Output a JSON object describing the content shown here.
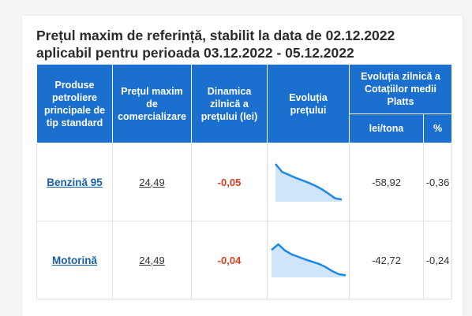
{
  "title": {
    "line1": "Prețul maxim de referință, stabilit la data de 02.12.2022",
    "line2": "aplicabil pentru perioada 03.12.2022 - 05.12.2022"
  },
  "table": {
    "headers": {
      "product": "Produse petroliere principale de tip standard",
      "max_price": "Prețul maxim de comercializare",
      "daily_change": "Dinamica zilnică a prețului (lei)",
      "evolution": "Evoluția prețului",
      "platts": "Evoluția zilnică a Cotațiilor medii Platts",
      "lei_tona": "lei/tona",
      "percent": "%"
    },
    "rows": [
      {
        "product": "Benzină 95",
        "max_price": "24,49",
        "daily_change": "-0,05",
        "sparkline": [
          1.0,
          0.78,
          0.7,
          0.62,
          0.55,
          0.48,
          0.4,
          0.3,
          0.18,
          0.05,
          0.02
        ],
        "lei_tona": "-58,92",
        "percent": "-0,36"
      },
      {
        "product": "Motorină",
        "max_price": "24,49",
        "daily_change": "-0,04",
        "sparkline": [
          0.82,
          1.0,
          0.8,
          0.68,
          0.6,
          0.52,
          0.45,
          0.38,
          0.28,
          0.15,
          0.05,
          0.02
        ],
        "lei_tona": "-42,72",
        "percent": "-0,24"
      }
    ]
  },
  "colors": {
    "header_bg": "#1a6fcf",
    "spark_line": "#1e88e5",
    "spark_fill": "#cfe5fa",
    "negative": "#e03a1e",
    "link": "#1a5fa8"
  }
}
